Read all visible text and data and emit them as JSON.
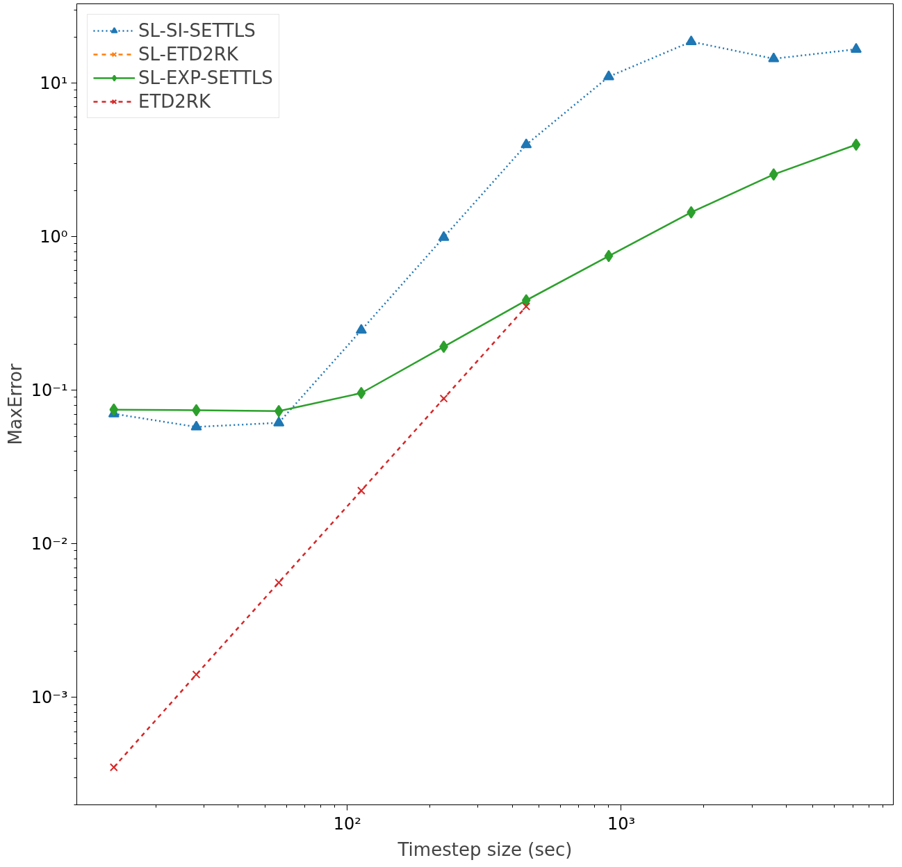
{
  "chart_data": {
    "type": "line",
    "xlabel": "Timestep size (sec)",
    "ylabel": "MaxError",
    "log": "xy",
    "grid": false,
    "legend": "top left",
    "x": [
      14.0625,
      28.125,
      56.25,
      112.5,
      225,
      450,
      900,
      1800,
      3600,
      7200
    ],
    "xlim": [
      10.3,
      9840
    ],
    "ylim": [
      0.0002,
      32.8
    ],
    "xticks": [
      {
        "value": 100,
        "label": "10²"
      },
      {
        "value": 1000,
        "label": "10³"
      }
    ],
    "yticks": [
      {
        "value": 0.001,
        "label": "10⁻³"
      },
      {
        "value": 0.01,
        "label": "10⁻²"
      },
      {
        "value": 0.1,
        "label": "10⁻¹"
      },
      {
        "value": 1,
        "label": "10⁰"
      },
      {
        "value": 10,
        "label": "10¹"
      }
    ],
    "series": [
      {
        "name": "SL-SI-SETTLS",
        "color": "#1f77b4",
        "marker": "triangle",
        "line_style": "dotted",
        "values": [
          0.0703,
          0.0577,
          0.0614,
          0.246,
          0.99,
          3.97,
          11.0,
          18.6,
          14.4,
          16.6
        ]
      },
      {
        "name": "SL-ETD2RK",
        "color": "#ff7f0e",
        "marker": "cross",
        "line_style": "dashed",
        "values": [
          null,
          null,
          null,
          null,
          null,
          null,
          null,
          null,
          null,
          null
        ]
      },
      {
        "name": "SL-EXP-SETTLS",
        "color": "#2ca02c",
        "marker": "diamond",
        "line_style": "solid",
        "values": [
          0.0748,
          0.0741,
          0.0732,
          0.0959,
          0.192,
          0.385,
          0.748,
          1.44,
          2.54,
          3.97
        ]
      },
      {
        "name": "ETD2RK",
        "color": "#d62728",
        "marker": "cross",
        "line_style": "dashed",
        "x": [
          14.0625,
          28.125,
          56.25,
          112.5,
          225,
          450
        ],
        "values": [
          0.000351,
          0.00141,
          0.0056,
          0.0222,
          0.0883,
          0.351
        ]
      }
    ]
  }
}
